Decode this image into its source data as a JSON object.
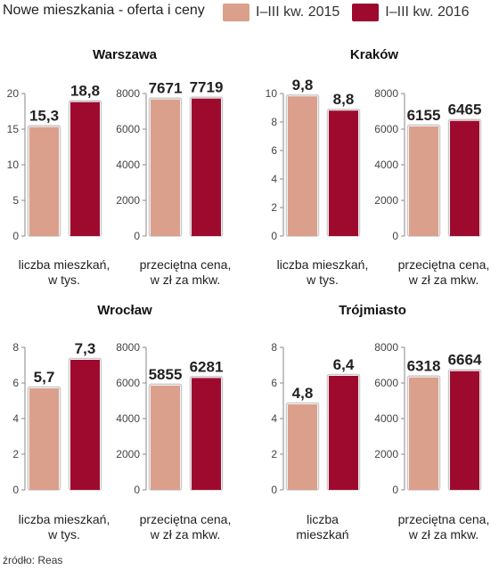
{
  "title": "Nowe mieszkania - oferta i ceny",
  "legend": [
    "I–III kw. 2015",
    "I–III kw. 2016"
  ],
  "colors": {
    "series2015": "#dba08c",
    "series2016": "#9e0a2e",
    "axis": "#888888",
    "bar_border": "#c9c9c9"
  },
  "source": "źródło: Reas",
  "chart_data": [
    {
      "type": "bar",
      "city": "Warszawa",
      "panels": [
        {
          "metric": "liczba mieszkań, w tys.",
          "ylim": [
            0,
            20
          ],
          "yticks": [
            0,
            5,
            10,
            15,
            20
          ],
          "tick_labels": [
            "0",
            "5",
            "10",
            "15",
            "20"
          ],
          "values": [
            15.3,
            18.8
          ],
          "labels": [
            "15,3",
            "18,8"
          ]
        },
        {
          "metric": "przeciętna cena, w zł za mkw.",
          "ylim": [
            0,
            8000
          ],
          "yticks": [
            0,
            2000,
            4000,
            6000,
            8000
          ],
          "tick_labels": [
            "0",
            "2000",
            "4000",
            "6000",
            "8000"
          ],
          "values": [
            7671,
            7719
          ],
          "labels": [
            "7671",
            "7719"
          ]
        }
      ]
    },
    {
      "type": "bar",
      "city": "Kraków",
      "panels": [
        {
          "metric": "liczba mieszkań, w tys.",
          "ylim": [
            0,
            10
          ],
          "yticks": [
            0,
            2,
            4,
            6,
            8,
            10
          ],
          "tick_labels": [
            "0",
            "2",
            "4",
            "6",
            "8",
            "10"
          ],
          "values": [
            9.8,
            8.8
          ],
          "labels": [
            "9,8",
            "8,8"
          ]
        },
        {
          "metric": "przeciętna cena, w zł za mkw.",
          "ylim": [
            0,
            8000
          ],
          "yticks": [
            0,
            2000,
            4000,
            6000,
            8000
          ],
          "tick_labels": [
            "0",
            "2000",
            "4000",
            "6000",
            "8000"
          ],
          "values": [
            6155,
            6465
          ],
          "labels": [
            "6155",
            "6465"
          ]
        }
      ]
    },
    {
      "type": "bar",
      "city": "Wrocław",
      "panels": [
        {
          "metric": "liczba mieszkań, w tys.",
          "ylim": [
            0,
            8
          ],
          "yticks": [
            0,
            2,
            4,
            6,
            8
          ],
          "tick_labels": [
            "0",
            "2",
            "4",
            "6",
            "8"
          ],
          "values": [
            5.7,
            7.3
          ],
          "labels": [
            "5,7",
            "7,3"
          ]
        },
        {
          "metric": "przeciętna cena, w zł za mkw.",
          "ylim": [
            0,
            8000
          ],
          "yticks": [
            0,
            2000,
            4000,
            6000,
            8000
          ],
          "tick_labels": [
            "0",
            "2000",
            "4000",
            "6000",
            "8000"
          ],
          "values": [
            5855,
            6281
          ],
          "labels": [
            "5855",
            "6281"
          ]
        }
      ]
    },
    {
      "type": "bar",
      "city": "Trójmiasto",
      "panels": [
        {
          "metric": "liczba mieszkań",
          "ylim": [
            0,
            8
          ],
          "yticks": [
            0,
            2,
            4,
            6,
            8
          ],
          "tick_labels": [
            "0",
            "2",
            "4",
            "6",
            "8"
          ],
          "values": [
            4.8,
            6.4
          ],
          "labels": [
            "4,8",
            "6,4"
          ]
        },
        {
          "metric": "przeciętna cena, w zł za mkw.",
          "ylim": [
            0,
            8000
          ],
          "yticks": [
            0,
            2000,
            4000,
            6000,
            8000
          ],
          "tick_labels": [
            "0",
            "2000",
            "4000",
            "6000",
            "8000"
          ],
          "values": [
            6318,
            6664
          ],
          "labels": [
            "6318",
            "6664"
          ]
        }
      ]
    }
  ]
}
